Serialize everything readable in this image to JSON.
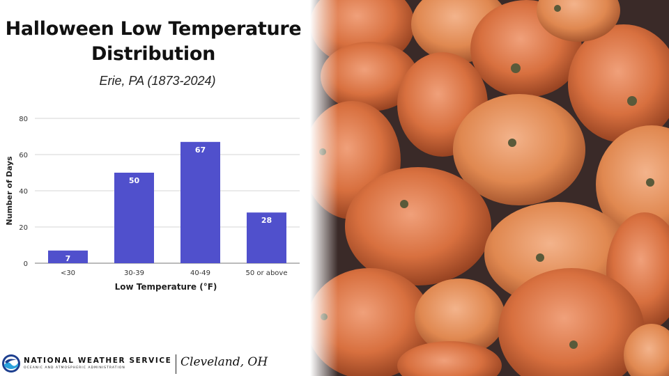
{
  "title": "Halloween Low Temperature Distribution",
  "subtitle": "Erie, PA (1873-2024)",
  "chart_data": {
    "type": "bar",
    "categories": [
      "<30",
      "30-39",
      "40-49",
      "50 or above"
    ],
    "values": [
      7,
      50,
      67,
      28
    ],
    "data_labels": [
      "7",
      "50",
      "67",
      "28"
    ],
    "xlabel": "Low Temperature (°F)",
    "ylabel": "Number of Days",
    "ylim": [
      0,
      80
    ],
    "yticks": [
      0,
      20,
      40,
      60,
      80
    ],
    "grid": true,
    "legend": "none",
    "bar_color": "#5050cc"
  },
  "footer": {
    "agency": "NATIONAL WEATHER SERVICE",
    "agency_sub": "OCEANIC AND ATMOSPHERIC ADMINISTRATION",
    "office": "Cleveland, OH"
  },
  "photo": {
    "subject": "pumpkins-photo",
    "accent": "#d8703f"
  }
}
